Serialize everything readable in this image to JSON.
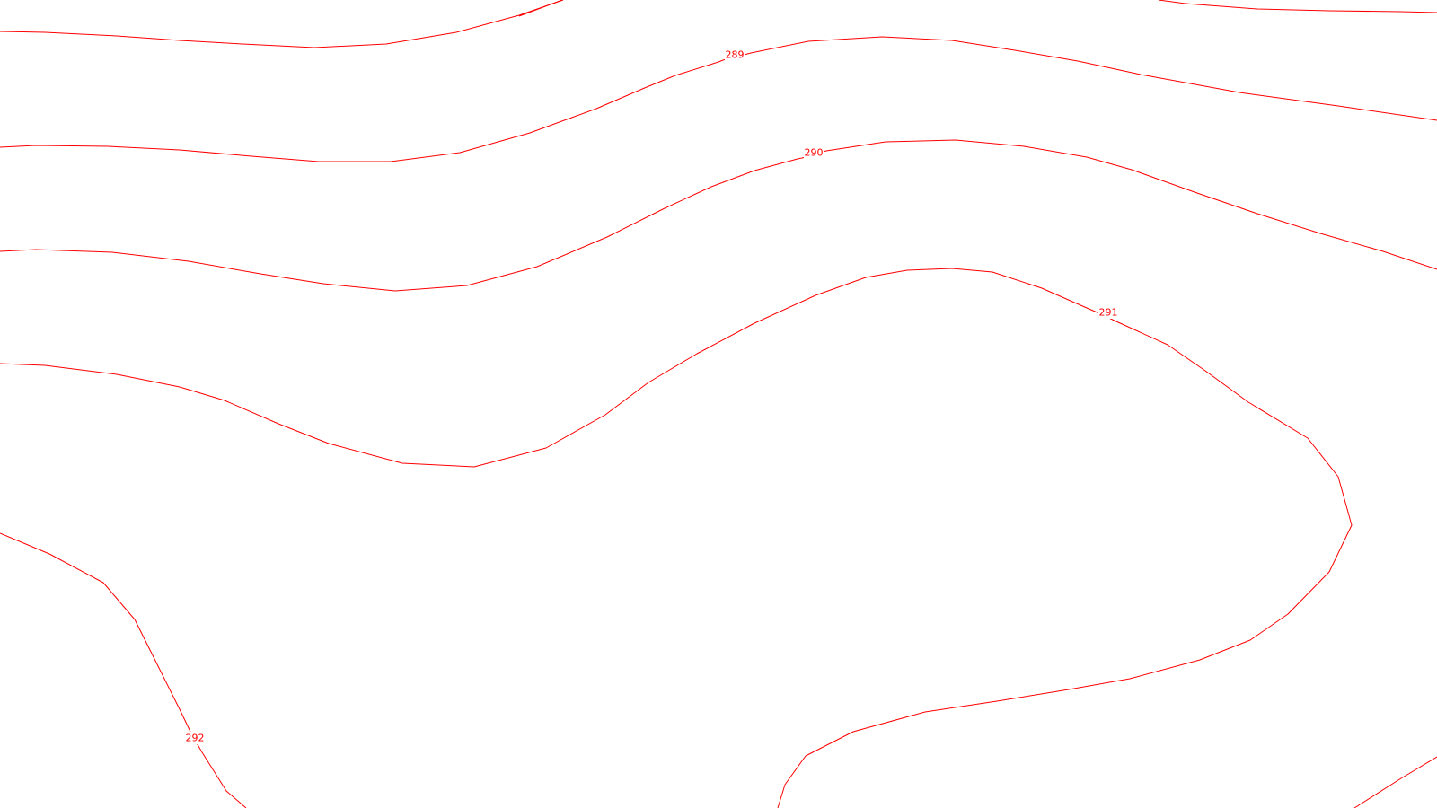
{
  "colors": {
    "contour": "#ff0000",
    "background": "#ffffff"
  },
  "contour_labels": [
    {
      "id": "label-289",
      "text": "289"
    },
    {
      "id": "label-290",
      "text": "290"
    },
    {
      "id": "label-291",
      "text": "291"
    },
    {
      "id": "label-292",
      "text": "292"
    }
  ]
}
